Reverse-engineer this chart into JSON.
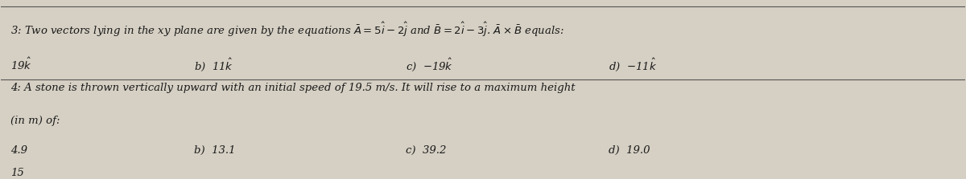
{
  "bg_color": "#d6d0c4",
  "text_color": "#1a1a1a",
  "line_color": "#555555",
  "q3_line1": "3: Two vectors lying in the xy plane are given by the equations $\\bar{A}=5\\hat{i}-2\\hat{j}$ and $\\bar{B}=2\\hat{i}-3\\hat{j}$. $\\bar{A}\\times\\bar{B}$ equals:",
  "q3_answers_a": "19$\\hat{k}$",
  "q3_answers_b": "b)  11$\\hat{k}$",
  "q3_answers_c": "c)  $-$19$\\hat{k}$",
  "q3_answers_d": "d)  $-$11$\\hat{k}$",
  "q4_line1": "4: A stone is thrown vertically upward with an initial speed of 19.5 m/s. It will rise to a maximum height",
  "q4_line2": "(in m) of:",
  "q4_answers_a": "4.9",
  "q4_answers_b": "b)  13.1",
  "q4_answers_c": "c)  39.2",
  "q4_answers_d": "d)  19.0",
  "bottom_text": "15",
  "figsize": [
    12.0,
    2.23
  ],
  "dpi": 100
}
